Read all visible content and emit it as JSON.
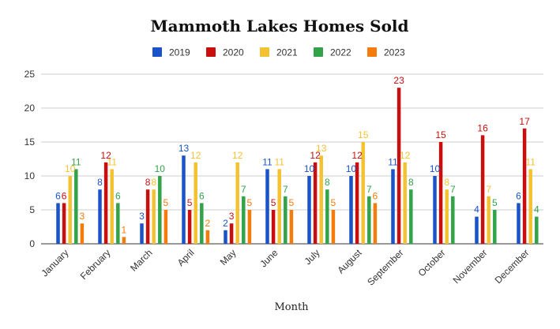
{
  "chart_data": {
    "type": "bar",
    "title": "Mammoth Lakes Homes Sold",
    "xlabel": "Month",
    "ylabel": "",
    "ylim": [
      0,
      25
    ],
    "yticks": [
      "0",
      "5",
      "10",
      "15",
      "20",
      "25"
    ],
    "grid": true,
    "legend_position": "top",
    "categories": [
      "January",
      "February",
      "March",
      "April",
      "May",
      "June",
      "July",
      "August",
      "September",
      "October",
      "November",
      "December"
    ],
    "series": [
      {
        "name": "2019",
        "color": "#1a53c9",
        "values": [
          6,
          8,
          3,
          13,
          2,
          11,
          10,
          10,
          11,
          10,
          4,
          6
        ]
      },
      {
        "name": "2020",
        "color": "#c90e0e",
        "values": [
          6,
          12,
          8,
          5,
          3,
          5,
          12,
          12,
          23,
          15,
          16,
          17
        ]
      },
      {
        "name": "2021",
        "color": "#f4c231",
        "values": [
          10,
          11,
          8,
          12,
          12,
          11,
          13,
          15,
          12,
          8,
          7,
          11
        ]
      },
      {
        "name": "2022",
        "color": "#33a34a",
        "values": [
          11,
          6,
          10,
          6,
          7,
          7,
          8,
          7,
          8,
          7,
          5,
          4
        ]
      },
      {
        "name": "2023",
        "color": "#f57c0a",
        "values": [
          3,
          1,
          5,
          2,
          5,
          5,
          5,
          6,
          null,
          null,
          null,
          null
        ]
      }
    ]
  }
}
